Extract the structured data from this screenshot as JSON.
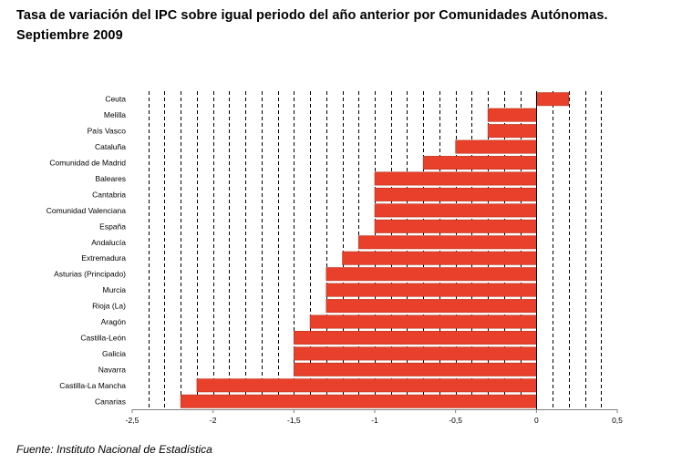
{
  "title_line1": "Tasa de variación del IPC sobre igual periodo del año anterior por Comunidades Autónomas.",
  "title_line2": "Septiembre 2009",
  "source": "Fuente: Instituto Nacional de Estadística",
  "colors": {
    "bar": "#e8402a",
    "bar_stroke": "#b8321e",
    "grid": "#000000",
    "axis": "#808080"
  },
  "chart_data": {
    "type": "bar",
    "orientation": "horizontal",
    "title": "Tasa de variación del IPC sobre igual periodo del año anterior por Comunidades Autónomas. Septiembre 2009",
    "categories": [
      "Ceuta",
      "Melilla",
      "País Vasco",
      "Cataluña",
      "Comunidad de Madrid",
      "Baleares",
      "Cantabria",
      "Comunidad Valenciana",
      "España",
      "Andalucía",
      "Extremadura",
      "Asturias (Principado)",
      "Murcia",
      "Rioja (La)",
      "Aragón",
      "Castilla-León",
      "Galicia",
      "Navarra",
      "Castilla-La Mancha",
      "Canarias"
    ],
    "values": [
      0.2,
      -0.3,
      -0.3,
      -0.5,
      -0.7,
      -1.0,
      -1.0,
      -1.0,
      -1.0,
      -1.1,
      -1.2,
      -1.3,
      -1.3,
      -1.3,
      -1.4,
      -1.5,
      -1.5,
      -1.5,
      -2.1,
      -2.2
    ],
    "xlim": [
      -2.5,
      0.5
    ],
    "xticks": [
      -2.5,
      -2,
      -1.5,
      -1,
      -0.5,
      0,
      0.5
    ],
    "xtick_labels": [
      "-2,5",
      "-2",
      "-1,5",
      "-1",
      "-0,5",
      "0",
      "0,5"
    ],
    "grid_step": 0.1,
    "grid": true,
    "xlabel": "",
    "ylabel": ""
  }
}
